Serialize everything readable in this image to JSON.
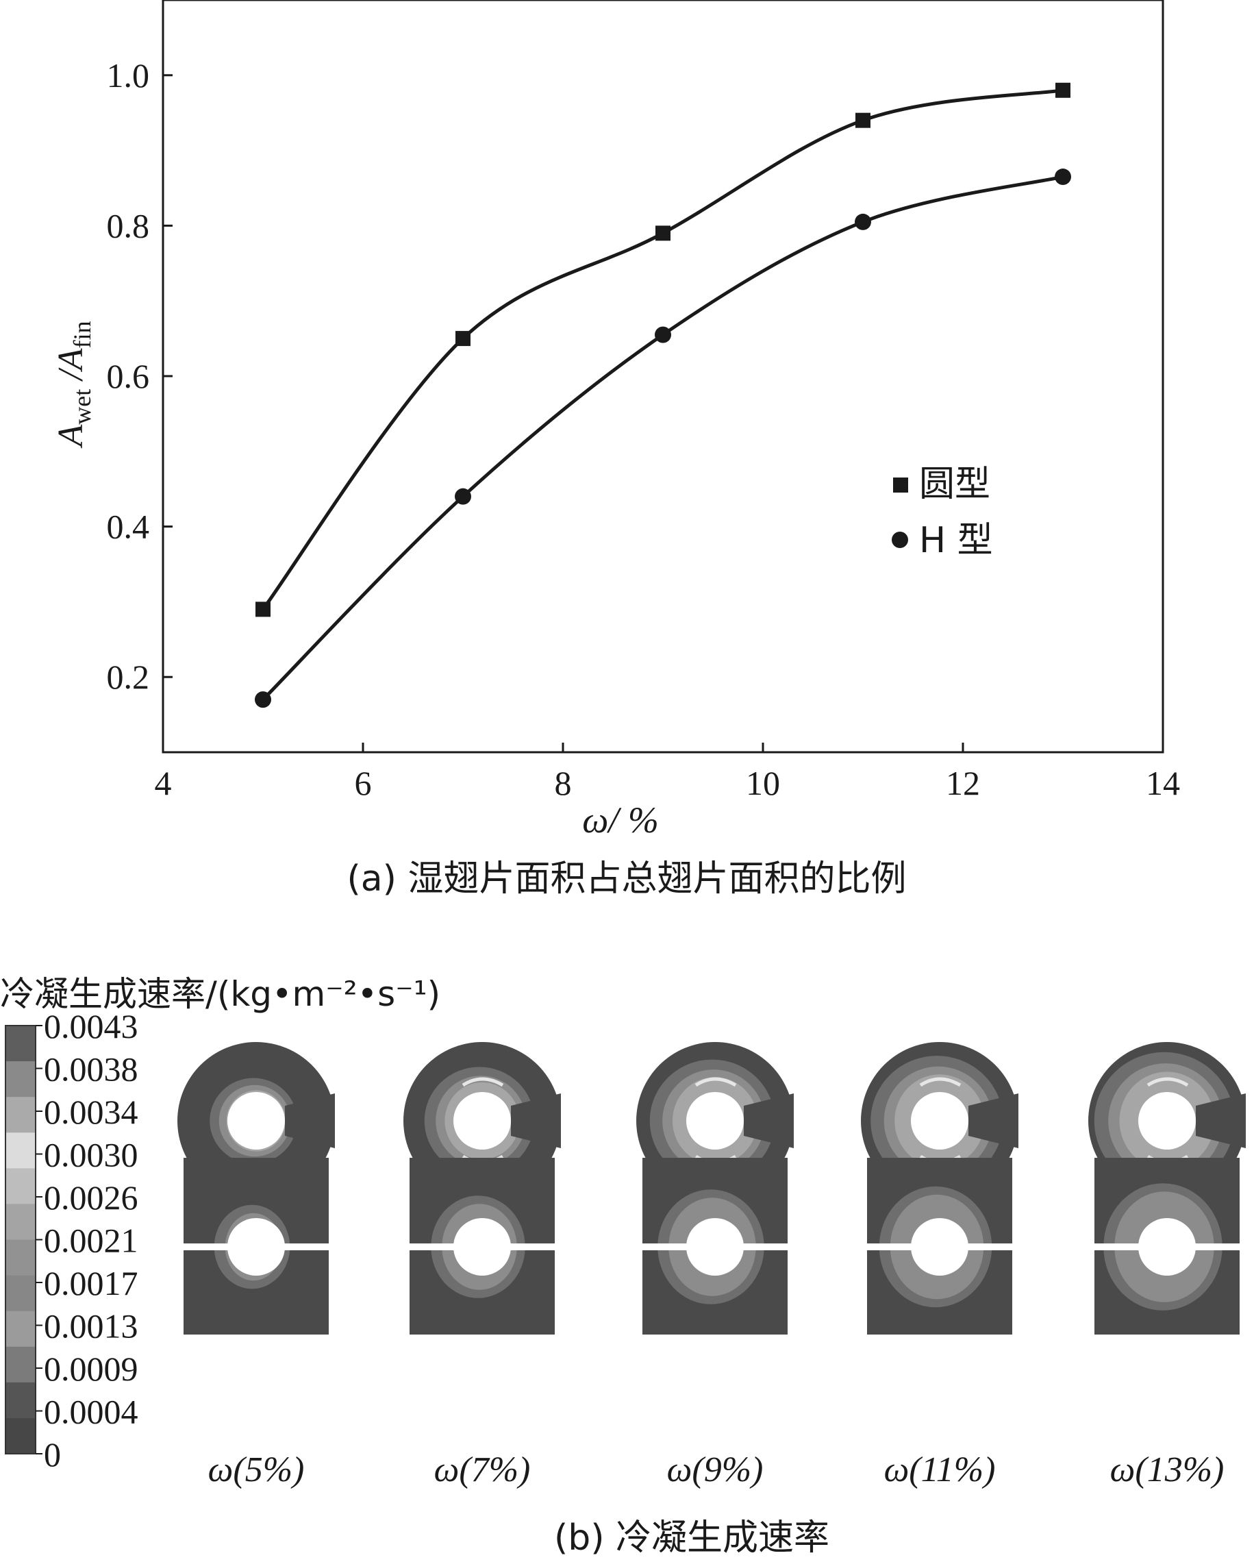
{
  "chart_data": [
    {
      "type": "line",
      "xlabel": "ω/ %",
      "ylabel_main": "A",
      "ylabel_sub1": "wet",
      "ylabel_mid": " /A",
      "ylabel_sub2": "fin",
      "xlim": [
        4,
        14
      ],
      "ylim": [
        0.1,
        1.1
      ],
      "xticks": [
        "4",
        "6",
        "8",
        "10",
        "12",
        "14"
      ],
      "yticks": [
        "0.2",
        "0.4",
        "0.6",
        "0.8",
        "1.0"
      ],
      "grid": false,
      "legend_position": "right",
      "x": [
        5,
        7,
        9,
        11,
        13
      ],
      "series": [
        {
          "name": "圆型",
          "marker": "square",
          "values": [
            0.29,
            0.65,
            0.79,
            0.94,
            0.98
          ]
        },
        {
          "name": "H 型",
          "marker": "circle",
          "values": [
            0.17,
            0.44,
            0.655,
            0.805,
            0.865
          ]
        }
      ],
      "caption": "(a) 湿翅片面积占总翅片面积的比例"
    },
    {
      "type": "heatmap",
      "colorbar_title": "冷凝生成速率/(kg•m⁻²•s⁻¹)",
      "colorbar_ticks": [
        "0.0043",
        "0.0038",
        "0.0034",
        "0.0030",
        "0.0026",
        "0.0021",
        "0.0017",
        "0.0013",
        "0.0009",
        "0.0004",
        "0"
      ],
      "colorbar_colors": [
        "#5e5e5e",
        "#8a8a8a",
        "#aaaaaa",
        "#dcdcdc",
        "#bdbdbd",
        "#a4a4a4",
        "#929292",
        "#878787",
        "#9b9b9b",
        "#7b7b7b",
        "#555555",
        "#474747"
      ],
      "panels": [
        "ω(5%)",
        "ω(7%)",
        "ω(9%)",
        "ω(11%)",
        "ω(13%)"
      ],
      "intensity": [
        0.25,
        0.55,
        0.75,
        0.85,
        0.95
      ],
      "caption": "(b) 冷凝生成速率"
    }
  ],
  "colors": {
    "ink": "#1a1a1a",
    "field_dark": "#4a4a4a",
    "band1": "#6e6e6e",
    "band2": "#8c8c8c",
    "band3": "#a6a6a6",
    "band4": "#c8c8c8",
    "highlight": "#e6e6e6"
  }
}
